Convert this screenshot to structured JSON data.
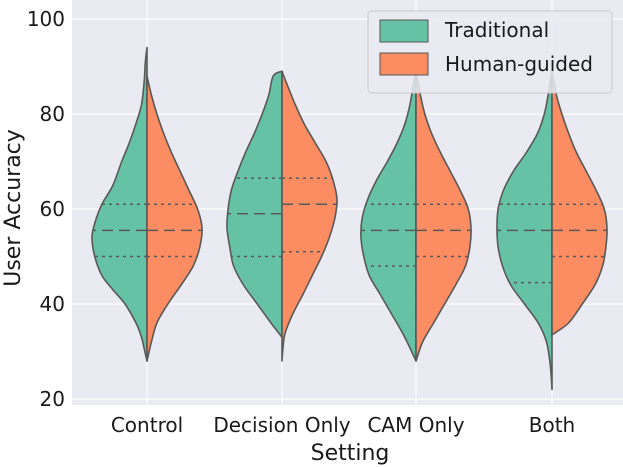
{
  "chart_data": {
    "type": "violin",
    "split": true,
    "title": "",
    "xlabel": "Setting",
    "ylabel": "User Accuracy",
    "ylim": [
      18,
      102
    ],
    "yticks": [
      20,
      40,
      60,
      80,
      100
    ],
    "grid": true,
    "legend_position": "top-right",
    "categories": [
      "Control",
      "Decision Only",
      "CAM Only",
      "Both"
    ],
    "series": [
      {
        "name": "Traditional",
        "color": "#66c2a5",
        "violins": [
          {
            "min": 28,
            "max": 94,
            "q1": 50,
            "median": 55.5,
            "q3": 61,
            "profile": [
              [
                28,
                0.0
              ],
              [
                30,
                0.04
              ],
              [
                33,
                0.1
              ],
              [
                36,
                0.2
              ],
              [
                40,
                0.4
              ],
              [
                43,
                0.62
              ],
              [
                46,
                0.82
              ],
              [
                50,
                0.95
              ],
              [
                54,
                1.0
              ],
              [
                57,
                0.95
              ],
              [
                61,
                0.82
              ],
              [
                65,
                0.62
              ],
              [
                70,
                0.46
              ],
              [
                74,
                0.32
              ],
              [
                78,
                0.2
              ],
              [
                82,
                0.1
              ],
              [
                87,
                0.05
              ],
              [
                91,
                0.03
              ],
              [
                94,
                0.0
              ]
            ]
          },
          {
            "min": 33,
            "max": 89,
            "q1": 50,
            "median": 59,
            "q3": 66.5,
            "profile": [
              [
                33,
                0.0
              ],
              [
                36,
                0.2
              ],
              [
                40,
                0.45
              ],
              [
                44,
                0.7
              ],
              [
                48,
                0.88
              ],
              [
                52,
                0.95
              ],
              [
                56,
                1.0
              ],
              [
                60,
                0.98
              ],
              [
                64,
                0.92
              ],
              [
                68,
                0.8
              ],
              [
                72,
                0.66
              ],
              [
                76,
                0.5
              ],
              [
                80,
                0.36
              ],
              [
                84,
                0.24
              ],
              [
                88,
                0.16
              ],
              [
                89,
                0.0
              ]
            ]
          },
          {
            "min": 28,
            "max": 89,
            "q1": 48,
            "median": 55.5,
            "q3": 61,
            "profile": [
              [
                28,
                0.0
              ],
              [
                31,
                0.12
              ],
              [
                34,
                0.25
              ],
              [
                38,
                0.45
              ],
              [
                42,
                0.65
              ],
              [
                46,
                0.85
              ],
              [
                50,
                0.95
              ],
              [
                54,
                1.0
              ],
              [
                58,
                0.98
              ],
              [
                62,
                0.88
              ],
              [
                66,
                0.72
              ],
              [
                70,
                0.52
              ],
              [
                74,
                0.34
              ],
              [
                78,
                0.2
              ],
              [
                82,
                0.11
              ],
              [
                86,
                0.05
              ],
              [
                89,
                0.0
              ]
            ]
          },
          {
            "min": 22,
            "max": 89,
            "q1": 44.5,
            "median": 55.5,
            "q3": 61,
            "profile": [
              [
                22,
                0.0
              ],
              [
                27,
                0.03
              ],
              [
                32,
                0.1
              ],
              [
                36,
                0.25
              ],
              [
                40,
                0.5
              ],
              [
                44,
                0.75
              ],
              [
                48,
                0.9
              ],
              [
                52,
                0.98
              ],
              [
                56,
                1.0
              ],
              [
                60,
                0.98
              ],
              [
                64,
                0.88
              ],
              [
                68,
                0.7
              ],
              [
                72,
                0.46
              ],
              [
                76,
                0.26
              ],
              [
                80,
                0.14
              ],
              [
                84,
                0.07
              ],
              [
                89,
                0.0
              ]
            ]
          }
        ]
      },
      {
        "name": "Human-guided",
        "color": "#fc8d62",
        "violins": [
          {
            "min": 28,
            "max": 88,
            "q1": 50,
            "median": 55.5,
            "q3": 61,
            "profile": [
              [
                28,
                0.0
              ],
              [
                32,
                0.08
              ],
              [
                36,
                0.18
              ],
              [
                40,
                0.38
              ],
              [
                44,
                0.62
              ],
              [
                48,
                0.84
              ],
              [
                52,
                0.96
              ],
              [
                56,
                1.0
              ],
              [
                60,
                0.92
              ],
              [
                64,
                0.76
              ],
              [
                68,
                0.6
              ],
              [
                72,
                0.44
              ],
              [
                76,
                0.3
              ],
              [
                80,
                0.18
              ],
              [
                84,
                0.08
              ],
              [
                88,
                0.0
              ]
            ]
          },
          {
            "min": 28,
            "max": 89,
            "q1": 51,
            "median": 61,
            "q3": 66.5,
            "profile": [
              [
                28,
                0.0
              ],
              [
                31,
                0.02
              ],
              [
                34,
                0.06
              ],
              [
                38,
                0.2
              ],
              [
                42,
                0.38
              ],
              [
                46,
                0.55
              ],
              [
                50,
                0.72
              ],
              [
                54,
                0.86
              ],
              [
                58,
                0.96
              ],
              [
                62,
                1.0
              ],
              [
                66,
                0.93
              ],
              [
                70,
                0.8
              ],
              [
                74,
                0.6
              ],
              [
                78,
                0.4
              ],
              [
                82,
                0.24
              ],
              [
                86,
                0.1
              ],
              [
                89,
                0.0
              ]
            ]
          },
          {
            "min": 28,
            "max": 89,
            "q1": 50,
            "median": 55.5,
            "q3": 61,
            "profile": [
              [
                28,
                0.0
              ],
              [
                32,
                0.12
              ],
              [
                36,
                0.32
              ],
              [
                40,
                0.52
              ],
              [
                44,
                0.72
              ],
              [
                48,
                0.9
              ],
              [
                52,
                0.98
              ],
              [
                56,
                1.0
              ],
              [
                60,
                0.95
              ],
              [
                64,
                0.8
              ],
              [
                68,
                0.62
              ],
              [
                72,
                0.44
              ],
              [
                76,
                0.28
              ],
              [
                80,
                0.16
              ],
              [
                84,
                0.08
              ],
              [
                89,
                0.0
              ]
            ]
          },
          {
            "min": 33.5,
            "max": 89,
            "q1": 50,
            "median": 55.5,
            "q3": 61,
            "profile": [
              [
                33.5,
                0.0
              ],
              [
                36,
                0.3
              ],
              [
                40,
                0.55
              ],
              [
                44,
                0.78
              ],
              [
                48,
                0.92
              ],
              [
                52,
                0.98
              ],
              [
                56,
                1.0
              ],
              [
                60,
                0.95
              ],
              [
                64,
                0.8
              ],
              [
                68,
                0.62
              ],
              [
                72,
                0.44
              ],
              [
                76,
                0.3
              ],
              [
                80,
                0.18
              ],
              [
                84,
                0.08
              ],
              [
                89,
                0.0
              ]
            ]
          }
        ]
      }
    ]
  }
}
